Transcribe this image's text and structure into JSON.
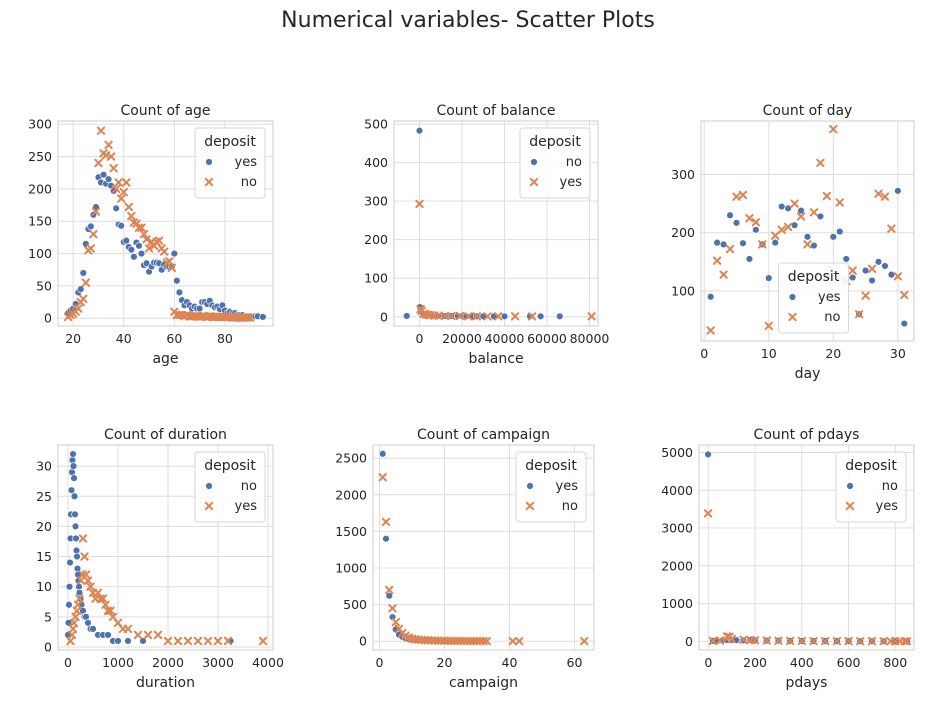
{
  "figure": {
    "title": "Numerical variables- Scatter Plots"
  },
  "style": {
    "blue": "#4c72b0",
    "orange": "#dd8452",
    "grid": "#dedede",
    "frame": "#cccccc"
  },
  "chart_data": [
    {
      "type": "scatter",
      "title": "Count of age",
      "xlabel": "age",
      "ylabel": "",
      "xlim": [
        14,
        99
      ],
      "ylim": [
        -12,
        305
      ],
      "xticks": [
        20,
        40,
        60,
        80
      ],
      "yticks": [
        0,
        50,
        100,
        150,
        200,
        250,
        300
      ],
      "legend": {
        "title": "deposit",
        "placement": "top-right",
        "entries": [
          "yes",
          "no"
        ]
      },
      "series": [
        {
          "name": "yes",
          "marker": "circle",
          "color": "#4c72b0",
          "x": [
            18,
            19,
            20,
            21,
            22,
            23,
            24,
            25,
            26,
            27,
            28,
            29,
            30,
            31,
            32,
            33,
            34,
            35,
            36,
            37,
            38,
            39,
            40,
            41,
            42,
            43,
            44,
            45,
            46,
            47,
            48,
            49,
            50,
            51,
            52,
            53,
            54,
            55,
            56,
            57,
            58,
            59,
            60,
            61,
            62,
            63,
            64,
            65,
            66,
            67,
            68,
            69,
            70,
            71,
            72,
            73,
            74,
            75,
            76,
            77,
            78,
            79,
            80,
            81,
            82,
            83,
            84,
            85,
            86,
            87,
            88,
            89,
            90,
            92,
            93,
            95
          ],
          "y": [
            8,
            12,
            15,
            22,
            40,
            45,
            70,
            115,
            138,
            142,
            160,
            172,
            218,
            210,
            222,
            208,
            215,
            205,
            197,
            170,
            145,
            143,
            118,
            120,
            110,
            106,
            95,
            117,
            112,
            100,
            82,
            85,
            72,
            80,
            86,
            86,
            85,
            75,
            83,
            80,
            80,
            80,
            100,
            58,
            40,
            28,
            20,
            25,
            20,
            15,
            18,
            15,
            15,
            25,
            25,
            22,
            27,
            20,
            17,
            18,
            14,
            20,
            12,
            8,
            10,
            8,
            8,
            5,
            5,
            5,
            3,
            3,
            3,
            3,
            3,
            2
          ]
        },
        {
          "name": "no",
          "marker": "x",
          "color": "#dd8452",
          "x": [
            18,
            19,
            20,
            21,
            22,
            23,
            24,
            25,
            26,
            27,
            28,
            29,
            30,
            31,
            32,
            33,
            34,
            35,
            36,
            37,
            38,
            39,
            40,
            41,
            42,
            43,
            44,
            45,
            46,
            47,
            48,
            49,
            50,
            51,
            52,
            53,
            54,
            55,
            56,
            57,
            58,
            59,
            60,
            61,
            62,
            63,
            64,
            65,
            66,
            67,
            68,
            69,
            70,
            71,
            72,
            73,
            74,
            75,
            76,
            77,
            78,
            79,
            80,
            81,
            82,
            83,
            84,
            85,
            86,
            87,
            88,
            89,
            90
          ],
          "y": [
            2,
            5,
            7,
            10,
            15,
            25,
            30,
            55,
            105,
            108,
            130,
            165,
            240,
            290,
            255,
            252,
            268,
            250,
            232,
            200,
            210,
            185,
            195,
            210,
            172,
            158,
            148,
            146,
            140,
            140,
            130,
            122,
            108,
            118,
            112,
            118,
            120,
            108,
            103,
            86,
            88,
            78,
            10,
            5,
            5,
            5,
            3,
            5,
            3,
            3,
            3,
            3,
            2,
            3,
            3,
            2,
            3,
            2,
            2,
            2,
            2,
            2,
            2,
            2,
            2,
            1,
            1,
            1,
            1,
            1,
            1,
            1,
            1
          ]
        }
      ]
    },
    {
      "type": "scatter",
      "title": "Count of balance",
      "xlabel": "balance",
      "ylabel": "",
      "xlim": [
        -12000,
        84000
      ],
      "ylim": [
        -24,
        508
      ],
      "xticks": [
        0,
        20000,
        40000,
        60000,
        80000
      ],
      "yticks": [
        0,
        100,
        200,
        300,
        400,
        500
      ],
      "legend": {
        "title": "deposit",
        "placement": "top-right",
        "entries": [
          "no",
          "yes"
        ]
      },
      "series": [
        {
          "name": "no",
          "marker": "circle",
          "color": "#4c72b0",
          "x": [
            -6000,
            0,
            200,
            500,
            1000,
            1500,
            2000,
            3000,
            4000,
            5000,
            6000,
            8000,
            10000,
            12000,
            15000,
            18000,
            20000,
            22000,
            25000,
            27000,
            30000,
            35000,
            40000,
            52000,
            57000,
            66000
          ],
          "y": [
            2,
            483,
            25,
            15,
            10,
            8,
            6,
            5,
            4,
            3,
            3,
            3,
            2,
            2,
            2,
            2,
            2,
            1,
            1,
            1,
            1,
            1,
            1,
            1,
            1,
            1
          ]
        },
        {
          "name": "yes",
          "marker": "x",
          "color": "#dd8452",
          "x": [
            0,
            500,
            1000,
            2000,
            3000,
            4000,
            5000,
            7000,
            9000,
            12000,
            15000,
            19000,
            23000,
            27000,
            32000,
            37000,
            45000,
            53000,
            81000
          ],
          "y": [
            293,
            20,
            15,
            8,
            6,
            5,
            4,
            3,
            3,
            2,
            2,
            2,
            1,
            1,
            1,
            1,
            1,
            1,
            1
          ]
        }
      ]
    },
    {
      "type": "scatter",
      "title": "Count of day",
      "xlabel": "day",
      "ylabel": "",
      "xlim": [
        -0.5,
        32.5
      ],
      "ylim": [
        14,
        392
      ],
      "xticks": [
        0,
        10,
        20,
        30
      ],
      "yticks": [
        100,
        200,
        300
      ],
      "legend": {
        "title": "deposit",
        "placement": "bottom-center",
        "entries": [
          "yes",
          "no"
        ]
      },
      "series": [
        {
          "name": "yes",
          "marker": "circle",
          "color": "#4c72b0",
          "x": [
            1,
            2,
            3,
            4,
            5,
            6,
            7,
            8,
            9,
            10,
            11,
            12,
            13,
            14,
            15,
            16,
            17,
            18,
            19,
            20,
            21,
            22,
            23,
            24,
            25,
            26,
            27,
            28,
            29,
            30,
            31
          ],
          "y": [
            90,
            183,
            180,
            230,
            217,
            182,
            155,
            205,
            180,
            122,
            183,
            245,
            242,
            213,
            238,
            193,
            178,
            228,
            125,
            193,
            202,
            155,
            123,
            60,
            135,
            118,
            150,
            143,
            128,
            272,
            44
          ]
        },
        {
          "name": "no",
          "marker": "x",
          "color": "#dd8452",
          "x": [
            1,
            2,
            3,
            4,
            5,
            6,
            7,
            8,
            9,
            10,
            11,
            12,
            13,
            14,
            15,
            16,
            17,
            18,
            19,
            20,
            21,
            22,
            23,
            24,
            25,
            26,
            27,
            28,
            29,
            30,
            31
          ],
          "y": [
            32,
            152,
            128,
            172,
            262,
            265,
            225,
            218,
            180,
            40,
            195,
            205,
            210,
            250,
            228,
            180,
            235,
            320,
            263,
            378,
            252,
            117,
            135,
            60,
            92,
            138,
            267,
            262,
            207,
            125,
            93
          ]
        }
      ]
    },
    {
      "type": "scatter",
      "title": "Count of duration",
      "xlabel": "duration",
      "ylabel": "",
      "xlim": [
        -200,
        4100
      ],
      "ylim": [
        -0.5,
        33.5
      ],
      "xticks": [
        0,
        1000,
        2000,
        3000,
        4000
      ],
      "yticks": [
        0,
        5,
        10,
        15,
        20,
        25,
        30
      ],
      "legend": {
        "title": "deposit",
        "placement": "top-right",
        "entries": [
          "no",
          "yes"
        ]
      },
      "series": [
        {
          "name": "no",
          "marker": "circle",
          "color": "#4c72b0",
          "x": [
            0,
            10,
            20,
            30,
            40,
            50,
            60,
            70,
            80,
            90,
            100,
            110,
            120,
            130,
            140,
            150,
            160,
            170,
            180,
            190,
            200,
            210,
            220,
            230,
            250,
            270,
            300,
            330,
            360,
            400,
            450,
            500,
            600,
            700,
            800,
            900,
            1000,
            1200,
            1500,
            3250
          ],
          "y": [
            2,
            4,
            7,
            10,
            14,
            18,
            22,
            26,
            29,
            31,
            32,
            30,
            28,
            25,
            22,
            20,
            18,
            16,
            15,
            13,
            12,
            11,
            10,
            9,
            8,
            7,
            6,
            5,
            5,
            4,
            3,
            3,
            2,
            2,
            2,
            1,
            1,
            1,
            1,
            1
          ]
        },
        {
          "name": "yes",
          "marker": "x",
          "color": "#dd8452",
          "x": [
            50,
            80,
            100,
            120,
            150,
            180,
            200,
            230,
            260,
            290,
            300,
            330,
            360,
            400,
            450,
            500,
            550,
            600,
            650,
            700,
            750,
            800,
            850,
            900,
            1000,
            1100,
            1200,
            1400,
            1600,
            1800,
            2000,
            2200,
            2400,
            2600,
            2800,
            3000,
            3200,
            3900
          ],
          "y": [
            1,
            2,
            3,
            4,
            5,
            6,
            7,
            8,
            11,
            12,
            18,
            15,
            12,
            11,
            10,
            9,
            8,
            9,
            8,
            8,
            7,
            6,
            6,
            5,
            4,
            3,
            3,
            2,
            2,
            2,
            1,
            1,
            1,
            1,
            1,
            1,
            1,
            1
          ]
        }
      ]
    },
    {
      "type": "scatter",
      "title": "Count of campaign",
      "xlabel": "campaign",
      "ylabel": "",
      "xlim": [
        -2,
        66
      ],
      "ylim": [
        -120,
        2680
      ],
      "xticks": [
        0,
        20,
        40,
        60
      ],
      "yticks": [
        0,
        500,
        1000,
        1500,
        2000,
        2500
      ],
      "legend": {
        "title": "deposit",
        "placement": "top-right",
        "entries": [
          "yes",
          "no"
        ]
      },
      "series": [
        {
          "name": "yes",
          "marker": "circle",
          "color": "#4c72b0",
          "x": [
            1,
            2,
            3,
            4,
            5,
            6,
            7,
            8,
            9,
            10,
            11,
            12,
            13,
            14,
            15,
            16,
            17,
            18,
            20,
            24,
            29,
            32
          ],
          "y": [
            2560,
            1400,
            620,
            330,
            160,
            90,
            60,
            40,
            30,
            20,
            15,
            10,
            8,
            6,
            5,
            4,
            3,
            3,
            2,
            1,
            1,
            1
          ]
        },
        {
          "name": "no",
          "marker": "x",
          "color": "#dd8452",
          "x": [
            1,
            2,
            3,
            4,
            5,
            6,
            7,
            8,
            9,
            10,
            11,
            12,
            13,
            14,
            15,
            16,
            17,
            18,
            19,
            20,
            21,
            22,
            23,
            24,
            25,
            26,
            27,
            28,
            29,
            30,
            31,
            32,
            33,
            41,
            43,
            63
          ],
          "y": [
            2240,
            1630,
            700,
            450,
            260,
            170,
            110,
            75,
            50,
            35,
            28,
            22,
            18,
            14,
            12,
            10,
            9,
            8,
            7,
            6,
            5,
            5,
            4,
            4,
            3,
            3,
            3,
            2,
            2,
            2,
            2,
            1,
            1,
            1,
            1,
            1
          ]
        }
      ]
    },
    {
      "type": "scatter",
      "title": "Count of pdays",
      "xlabel": "pdays",
      "ylabel": "",
      "xlim": [
        -40,
        880
      ],
      "ylim": [
        -230,
        5200
      ],
      "xticks": [
        0,
        200,
        400,
        600,
        800
      ],
      "yticks": [
        0,
        1000,
        2000,
        3000,
        4000,
        5000
      ],
      "legend": {
        "title": "deposit",
        "placement": "top-right",
        "entries": [
          "no",
          "yes"
        ]
      },
      "series": [
        {
          "name": "no",
          "marker": "circle",
          "color": "#4c72b0",
          "x": [
            -1,
            20,
            40,
            60,
            80,
            100,
            120,
            150,
            180,
            200,
            250,
            300,
            350,
            400,
            450,
            500,
            550,
            600,
            650,
            700,
            750,
            800,
            850
          ],
          "y": [
            4950,
            10,
            15,
            25,
            30,
            35,
            30,
            25,
            40,
            25,
            20,
            18,
            12,
            10,
            8,
            8,
            5,
            5,
            4,
            3,
            2,
            2,
            1
          ]
        },
        {
          "name": "yes",
          "marker": "x",
          "color": "#dd8452",
          "x": [
            -1,
            20,
            50,
            80,
            90,
            100,
            150,
            180,
            200,
            250,
            300,
            350,
            400,
            450,
            500,
            550,
            600,
            650,
            700,
            750,
            780,
            800,
            820,
            840,
            850
          ],
          "y": [
            3390,
            10,
            20,
            130,
            120,
            60,
            40,
            30,
            25,
            20,
            15,
            10,
            8,
            6,
            5,
            5,
            4,
            3,
            3,
            2,
            2,
            2,
            1,
            1,
            1
          ]
        }
      ]
    }
  ]
}
